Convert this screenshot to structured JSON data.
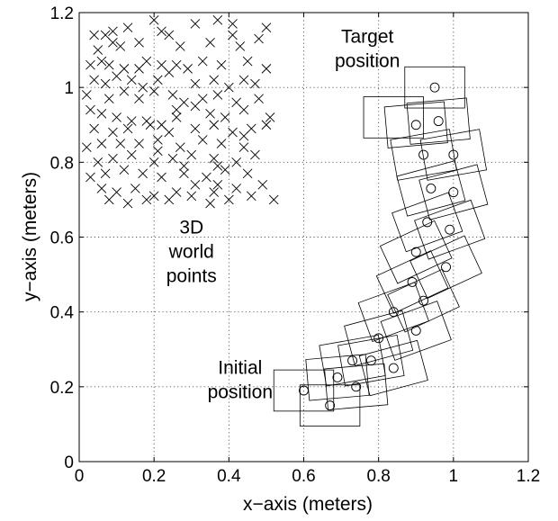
{
  "chart_data": {
    "type": "scatter",
    "title": "",
    "xlabel": "x−axis (meters)",
    "ylabel": "y−axis (meters)",
    "xlim": [
      0,
      1.2
    ],
    "ylim": [
      0,
      1.2
    ],
    "xticks": [
      0,
      0.2,
      0.4,
      0.6,
      0.8,
      1.0,
      1.2
    ],
    "xtick_labels": [
      "0",
      "0.2",
      "0.4",
      "0.6",
      "0.8",
      "1",
      "1.2"
    ],
    "yticks": [
      0,
      0.2,
      0.4,
      0.6,
      0.8,
      1.0,
      1.2
    ],
    "ytick_labels": [
      "0",
      "0.2",
      "0.4",
      "0.6",
      "0.8",
      "1",
      "1.2"
    ],
    "grid": true,
    "annotations": [
      {
        "lines": [
          "Target",
          "position"
        ],
        "x": 0.77,
        "y": 1.12
      },
      {
        "lines": [
          "3D",
          "world",
          "points"
        ],
        "x": 0.3,
        "y": 0.61
      },
      {
        "lines": [
          "Initial",
          "position"
        ],
        "x": 0.43,
        "y": 0.235
      }
    ],
    "series": [
      {
        "marker": "x",
        "points": [
          [
            0.04,
            1.14
          ],
          [
            0.07,
            1.14
          ],
          [
            0.09,
            1.15
          ],
          [
            0.13,
            1.16
          ],
          [
            0.2,
            1.18
          ],
          [
            0.22,
            1.15
          ],
          [
            0.24,
            1.14
          ],
          [
            0.31,
            1.17
          ],
          [
            0.37,
            1.18
          ],
          [
            0.41,
            1.17
          ],
          [
            0.5,
            1.16
          ],
          [
            0.05,
            1.1
          ],
          [
            0.11,
            1.11
          ],
          [
            0.16,
            1.12
          ],
          [
            0.27,
            1.11
          ],
          [
            0.35,
            1.12
          ],
          [
            0.43,
            1.11
          ],
          [
            0.48,
            1.13
          ],
          [
            0.03,
            1.06
          ],
          [
            0.06,
            1.07
          ],
          [
            0.08,
            1.06
          ],
          [
            0.12,
            1.05
          ],
          [
            0.18,
            1.07
          ],
          [
            0.22,
            1.06
          ],
          [
            0.26,
            1.06
          ],
          [
            0.29,
            1.05
          ],
          [
            0.33,
            1.07
          ],
          [
            0.38,
            1.06
          ],
          [
            0.45,
            1.07
          ],
          [
            0.5,
            1.05
          ],
          [
            0.04,
            1.02
          ],
          [
            0.07,
            1.01
          ],
          [
            0.1,
            1.03
          ],
          [
            0.14,
            1.02
          ],
          [
            0.17,
            1.0
          ],
          [
            0.21,
            1.02
          ],
          [
            0.24,
            1.04
          ],
          [
            0.31,
            1.01
          ],
          [
            0.36,
            1.02
          ],
          [
            0.4,
            1.0
          ],
          [
            0.44,
            1.02
          ],
          [
            0.47,
            1.01
          ],
          [
            0.02,
            0.98
          ],
          [
            0.08,
            0.97
          ],
          [
            0.12,
            0.99
          ],
          [
            0.16,
            0.97
          ],
          [
            0.2,
            0.99
          ],
          [
            0.25,
            0.98
          ],
          [
            0.28,
            0.96
          ],
          [
            0.33,
            0.97
          ],
          [
            0.37,
            0.98
          ],
          [
            0.42,
            0.96
          ],
          [
            0.48,
            0.97
          ],
          [
            0.03,
            0.94
          ],
          [
            0.06,
            0.93
          ],
          [
            0.1,
            0.92
          ],
          [
            0.14,
            0.91
          ],
          [
            0.18,
            0.91
          ],
          [
            0.22,
            0.9
          ],
          [
            0.26,
            0.92
          ],
          [
            0.35,
            0.93
          ],
          [
            0.39,
            0.92
          ],
          [
            0.44,
            0.94
          ],
          [
            0.51,
            0.92
          ],
          [
            0.04,
            0.89
          ],
          [
            0.09,
            0.88
          ],
          [
            0.13,
            0.89
          ],
          [
            0.19,
            0.9
          ],
          [
            0.24,
            0.88
          ],
          [
            0.31,
            0.89
          ],
          [
            0.36,
            0.9
          ],
          [
            0.41,
            0.88
          ],
          [
            0.46,
            0.89
          ],
          [
            0.5,
            0.9
          ],
          [
            0.02,
            0.84
          ],
          [
            0.06,
            0.85
          ],
          [
            0.11,
            0.85
          ],
          [
            0.16,
            0.85
          ],
          [
            0.21,
            0.86
          ],
          [
            0.27,
            0.84
          ],
          [
            0.33,
            0.86
          ],
          [
            0.38,
            0.85
          ],
          [
            0.44,
            0.84
          ],
          [
            0.05,
            0.8
          ],
          [
            0.09,
            0.81
          ],
          [
            0.14,
            0.82
          ],
          [
            0.2,
            0.8
          ],
          [
            0.25,
            0.81
          ],
          [
            0.3,
            0.82
          ],
          [
            0.36,
            0.81
          ],
          [
            0.42,
            0.8
          ],
          [
            0.47,
            0.82
          ],
          [
            0.03,
            0.76
          ],
          [
            0.07,
            0.77
          ],
          [
            0.12,
            0.78
          ],
          [
            0.17,
            0.77
          ],
          [
            0.22,
            0.76
          ],
          [
            0.28,
            0.77
          ],
          [
            0.34,
            0.76
          ],
          [
            0.39,
            0.78
          ],
          [
            0.45,
            0.77
          ],
          [
            0.06,
            0.73
          ],
          [
            0.1,
            0.72
          ],
          [
            0.15,
            0.73
          ],
          [
            0.2,
            0.71
          ],
          [
            0.26,
            0.72
          ],
          [
            0.31,
            0.74
          ],
          [
            0.36,
            0.72
          ],
          [
            0.42,
            0.73
          ],
          [
            0.49,
            0.74
          ],
          [
            0.08,
            0.7
          ],
          [
            0.13,
            0.69
          ],
          [
            0.18,
            0.7
          ],
          [
            0.24,
            0.7
          ],
          [
            0.3,
            0.71
          ],
          [
            0.35,
            0.69
          ],
          [
            0.4,
            0.7
          ],
          [
            0.46,
            0.71
          ],
          [
            0.52,
            0.7
          ],
          [
            0.28,
            0.79
          ],
          [
            0.37,
            0.79
          ],
          [
            0.21,
            0.83
          ],
          [
            0.44,
            0.87
          ],
          [
            0.31,
            0.95
          ],
          [
            0.09,
            1.12
          ],
          [
            0.41,
            1.14
          ],
          [
            0.16,
            1.05
          ],
          [
            0.26,
            0.94
          ],
          [
            0.37,
            0.74
          ]
        ]
      },
      {
        "marker": "o",
        "points": [
          [
            0.6,
            0.19
          ],
          [
            0.67,
            0.15
          ],
          [
            0.69,
            0.225
          ],
          [
            0.74,
            0.2
          ],
          [
            0.73,
            0.27
          ],
          [
            0.8,
            0.33
          ],
          [
            0.78,
            0.27
          ],
          [
            0.84,
            0.25
          ],
          [
            0.84,
            0.4
          ],
          [
            0.89,
            0.48
          ],
          [
            0.9,
            0.35
          ],
          [
            0.92,
            0.43
          ],
          [
            0.9,
            0.56
          ],
          [
            0.98,
            0.52
          ],
          [
            0.93,
            0.64
          ],
          [
            0.99,
            0.62
          ],
          [
            0.94,
            0.73
          ],
          [
            1.0,
            0.72
          ],
          [
            0.92,
            0.82
          ],
          [
            1.0,
            0.82
          ],
          [
            0.9,
            0.9
          ],
          [
            0.96,
            0.91
          ],
          [
            0.95,
            1.0
          ]
        ]
      }
    ],
    "poses": [
      {
        "x": 0.6,
        "y": 0.19,
        "angle": 0
      },
      {
        "x": 0.67,
        "y": 0.15,
        "angle": 0
      },
      {
        "x": 0.69,
        "y": 0.225,
        "angle": 5
      },
      {
        "x": 0.74,
        "y": 0.2,
        "angle": 5
      },
      {
        "x": 0.73,
        "y": 0.27,
        "angle": 10
      },
      {
        "x": 0.78,
        "y": 0.27,
        "angle": 10
      },
      {
        "x": 0.84,
        "y": 0.25,
        "angle": 15
      },
      {
        "x": 0.8,
        "y": 0.33,
        "angle": 15
      },
      {
        "x": 0.84,
        "y": 0.4,
        "angle": 20
      },
      {
        "x": 0.9,
        "y": 0.35,
        "angle": 20
      },
      {
        "x": 0.89,
        "y": 0.48,
        "angle": 25
      },
      {
        "x": 0.92,
        "y": 0.43,
        "angle": 25
      },
      {
        "x": 0.9,
        "y": 0.56,
        "angle": 25
      },
      {
        "x": 0.98,
        "y": 0.52,
        "angle": 25
      },
      {
        "x": 0.93,
        "y": 0.64,
        "angle": 20
      },
      {
        "x": 0.99,
        "y": 0.62,
        "angle": 20
      },
      {
        "x": 0.94,
        "y": 0.73,
        "angle": 15
      },
      {
        "x": 1.0,
        "y": 0.72,
        "angle": 15
      },
      {
        "x": 0.92,
        "y": 0.82,
        "angle": 10
      },
      {
        "x": 1.0,
        "y": 0.82,
        "angle": 10
      },
      {
        "x": 0.9,
        "y": 0.9,
        "angle": 5
      },
      {
        "x": 0.96,
        "y": 0.91,
        "angle": 5
      },
      {
        "x": 0.95,
        "y": 1.0,
        "angle": 0
      },
      {
        "x": 0.84,
        "y": 0.92,
        "angle": 0
      }
    ],
    "pose_size": {
      "w": 0.16,
      "h": 0.11
    }
  }
}
